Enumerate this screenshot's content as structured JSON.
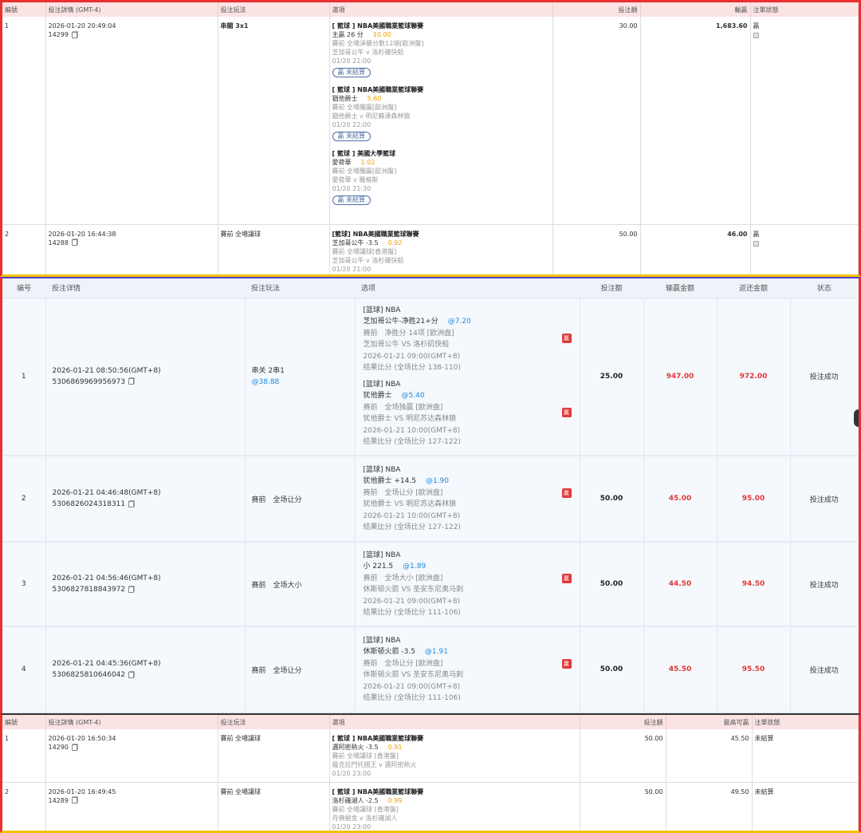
{
  "panel1": {
    "headers": [
      "編號",
      "投注詳情 (GMT-4)",
      "投注玩法",
      "選項",
      "投注額",
      "輸贏",
      "注單狀態"
    ],
    "rows": [
      {
        "no": "1",
        "time": "2026-01-20 20:49:04",
        "id": "14299",
        "type": "串關 3x1",
        "stake": "30.00",
        "result": "1,683.60",
        "status": "贏",
        "legs": [
          {
            "league": "[ 籃球 ] NBA美國職業籃球聯賽",
            "pick": "主贏 26 分",
            "odds": "10.00",
            "market": "賽前 全場淨勝分數12項[歐洲盤]",
            "match": "芝加哥公牛 v 洛杉磯快船",
            "date": "01/20 21:00",
            "badge": "贏 未結算"
          },
          {
            "league": "[ 籃球 ] NBA美國職業籃球聯賽",
            "pick": "猶他爵士",
            "odds": "5.60",
            "market": "賽前 全場獨贏[歐洲盤]",
            "match": "猶他爵士 v 明尼蘇達森林狼",
            "date": "01/20 22:00",
            "badge": "贏 未結算"
          },
          {
            "league": "[ 籃球 ] 美國大學籃球",
            "pick": "愛荷華",
            "odds": "1.02",
            "market": "賽前 全場獨贏[歐洲盤]",
            "match": "愛荷華 v 羅格斯",
            "date": "01/20 21:30",
            "badge": "贏 未結算"
          }
        ]
      },
      {
        "no": "2",
        "time": "2026-01-20 16:44:38",
        "id": "14288",
        "type": "賽前 全場讓球",
        "stake": "50.00",
        "result": "46.00",
        "status": "贏",
        "legs": [
          {
            "league": "[籃球] NBA美國職業籃球聯賽",
            "pick": "芝加哥公牛 -3.5",
            "odds": "0.92",
            "market": "賽前 全場讓球[香港盤]",
            "match": "芝加哥公牛 v 洛杉磯快船",
            "date": "01/20 21:00"
          }
        ]
      }
    ]
  },
  "panel2": {
    "headers": [
      "编号",
      "投注详情",
      "投注玩法",
      "选项",
      "投注额",
      "输赢金额",
      "返还金额",
      "状态"
    ],
    "rows": [
      {
        "no": "1",
        "time": "2026-01-21 08:50:56(GMT+8)",
        "id": "5306869969956973",
        "type": "串关 2串1",
        "type_odds": "@38.88",
        "stake": "25.00",
        "winloss": "947.00",
        "returned": "972.00",
        "status": "投注成功",
        "legs": [
          {
            "league": "[篮球] NBA",
            "pick": "芝加哥公牛-净胜21+分",
            "odds": "@7.20",
            "market": "赛前　净胜分 14项 [欧洲盘]",
            "match": "芝加哥公牛 VS 洛杉矶快船",
            "date": "2026-01-21 09:00(GMT+8)",
            "score": "结果比分 (全场比分 138-110)",
            "win": "赢"
          },
          {
            "league": "[篮球] NBA",
            "pick": "犹他爵士",
            "odds": "@5.40",
            "market": "赛前　全场独赢 [欧洲盘]",
            "match": "犹他爵士 VS 明尼苏达森林狼",
            "date": "2026-01-21 10:00(GMT+8)",
            "score": "结果比分 (全场比分 127-122)",
            "win": "赢"
          }
        ]
      },
      {
        "no": "2",
        "time": "2026-01-21 04:46:48(GMT+8)",
        "id": "5306826024318311",
        "type": "赛前　全场让分",
        "type_odds": "",
        "stake": "50.00",
        "winloss": "45.00",
        "returned": "95.00",
        "status": "投注成功",
        "legs": [
          {
            "league": "[篮球] NBA",
            "pick": "犹他爵士 +14.5",
            "odds": "@1.90",
            "market": "赛前　全场让分 [欧洲盘]",
            "match": "犹他爵士 VS 明尼苏达森林狼",
            "date": "2026-01-21 10:00(GMT+8)",
            "score": "结果比分 (全场比分 127-122)",
            "win": "赢"
          }
        ]
      },
      {
        "no": "3",
        "time": "2026-01-21 04:56:46(GMT+8)",
        "id": "5306827818843972",
        "type": "赛前　全场大小",
        "type_odds": "",
        "stake": "50.00",
        "winloss": "44.50",
        "returned": "94.50",
        "status": "投注成功",
        "legs": [
          {
            "league": "[篮球] NBA",
            "pick": "小 221.5",
            "odds": "@1.89",
            "market": "赛前　全场大小 [欧洲盘]",
            "match": "休斯顿火箭 VS 圣安东尼奥马刺",
            "date": "2026-01-21 09:00(GMT+8)",
            "score": "结果比分 (全场比分 111-106)",
            "win": "赢"
          }
        ]
      },
      {
        "no": "4",
        "time": "2026-01-21 04:45:36(GMT+8)",
        "id": "5306825810646042",
        "type": "赛前　全场让分",
        "type_odds": "",
        "stake": "50.00",
        "winloss": "45.50",
        "returned": "95.50",
        "status": "投注成功",
        "legs": [
          {
            "league": "[篮球] NBA",
            "pick": "休斯顿火箭 -3.5",
            "odds": "@1.91",
            "market": "赛前　全场让分 [欧洲盘]",
            "match": "休斯顿火箭 VS 圣安东尼奥马刺",
            "date": "2026-01-21 09:00(GMT+8)",
            "score": "结果比分 (全场比分 111-106)",
            "win": "赢"
          }
        ]
      }
    ]
  },
  "panel3": {
    "headers": [
      "編號",
      "投注詳情 (GMT-4)",
      "投注玩法",
      "選項",
      "投注額",
      "最高可贏",
      "注單狀態"
    ],
    "rows": [
      {
        "no": "1",
        "time": "2026-01-20 16:50:34",
        "id": "14290",
        "type": "賽前 全場讓球",
        "stake": "50.00",
        "result": "45.50",
        "status": "未結算",
        "legs": [
          {
            "league": "[ 籃球 ] NBA美國職業籃球聯賽",
            "pick": "邁阿密熱火 -3.5",
            "odds": "0.91",
            "market": "賽前 全場讓球 [香港盤]",
            "match": "薩克拉門托國王 v 邁阿密熱火",
            "date": "01/20 23:00"
          }
        ]
      },
      {
        "no": "2",
        "time": "2026-01-20 16:49:45",
        "id": "14289",
        "type": "賽前 全場讓球",
        "stake": "50.00",
        "result": "49.50",
        "status": "未結算",
        "legs": [
          {
            "league": "[ 籃球 ] NBA美國職業籃球聯賽",
            "pick": "洛杉磯湖人 -2.5",
            "odds": "0.99",
            "market": "賽前 全場讓球 [香港盤]",
            "match": "丹佛掘金 v 洛杉磯湖人",
            "date": "01/20 23:00"
          }
        ]
      }
    ]
  }
}
